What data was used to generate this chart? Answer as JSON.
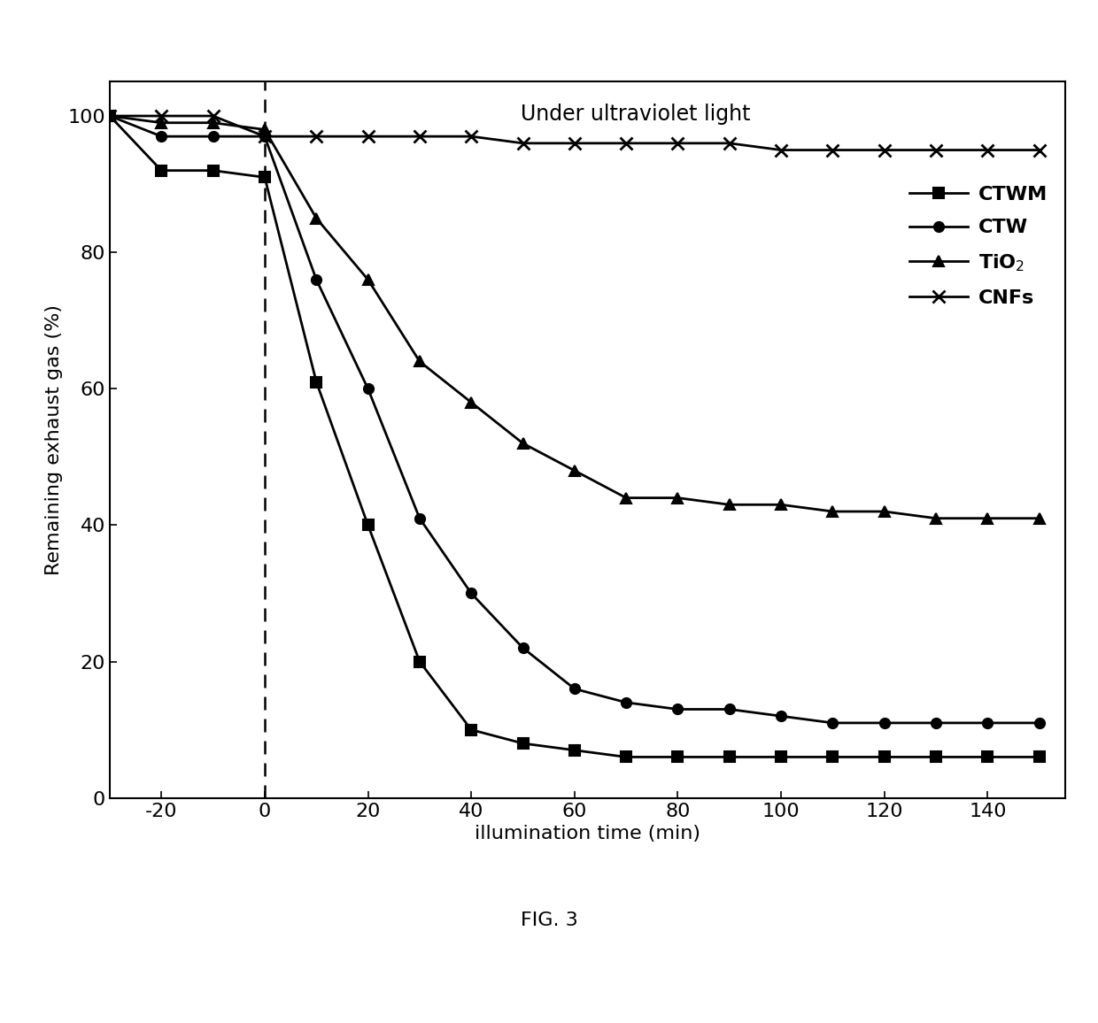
{
  "title": "Under ultraviolet light",
  "xlabel": "illumination time (min)",
  "ylabel": "Remaining exhaust gas (%)",
  "fig_label": "FIG. 3",
  "xlim": [
    -30,
    155
  ],
  "ylim": [
    0,
    105
  ],
  "xticks": [
    -20,
    0,
    20,
    40,
    60,
    80,
    100,
    120,
    140
  ],
  "yticks": [
    0,
    20,
    40,
    60,
    80,
    100
  ],
  "dashed_x": 0,
  "series": {
    "CTWM": {
      "x": [
        -30,
        -20,
        -10,
        0,
        10,
        20,
        30,
        40,
        50,
        60,
        70,
        80,
        90,
        100,
        110,
        120,
        130,
        140,
        150
      ],
      "y": [
        100,
        92,
        92,
        91,
        61,
        40,
        20,
        10,
        8,
        7,
        6,
        6,
        6,
        6,
        6,
        6,
        6,
        6,
        6
      ],
      "marker": "s",
      "color": "#000000",
      "label": "CTWM"
    },
    "CTW": {
      "x": [
        -30,
        -20,
        -10,
        0,
        10,
        20,
        30,
        40,
        50,
        60,
        70,
        80,
        90,
        100,
        110,
        120,
        130,
        140,
        150
      ],
      "y": [
        100,
        97,
        97,
        97,
        76,
        60,
        41,
        30,
        22,
        16,
        14,
        13,
        13,
        12,
        11,
        11,
        11,
        11,
        11
      ],
      "marker": "o",
      "color": "#000000",
      "label": "CTW"
    },
    "TiO2": {
      "x": [
        -30,
        -20,
        -10,
        0,
        10,
        20,
        30,
        40,
        50,
        60,
        70,
        80,
        90,
        100,
        110,
        120,
        130,
        140,
        150
      ],
      "y": [
        100,
        99,
        99,
        98,
        85,
        76,
        64,
        58,
        52,
        48,
        44,
        44,
        43,
        43,
        42,
        42,
        41,
        41,
        41
      ],
      "marker": "^",
      "color": "#000000",
      "label": "TiO$_2$"
    },
    "CNFs": {
      "x": [
        -30,
        -20,
        -10,
        0,
        10,
        20,
        30,
        40,
        50,
        60,
        70,
        80,
        90,
        100,
        110,
        120,
        130,
        140,
        150
      ],
      "y": [
        100,
        100,
        100,
        97,
        97,
        97,
        97,
        97,
        96,
        96,
        96,
        96,
        96,
        95,
        95,
        95,
        95,
        95,
        95
      ],
      "marker": "x",
      "color": "#000000",
      "label": "CNFs"
    }
  },
  "background_color": "#ffffff",
  "linewidth": 2.0,
  "markersize": 8,
  "title_fontsize": 17,
  "label_fontsize": 16,
  "tick_fontsize": 16,
  "legend_fontsize": 16
}
